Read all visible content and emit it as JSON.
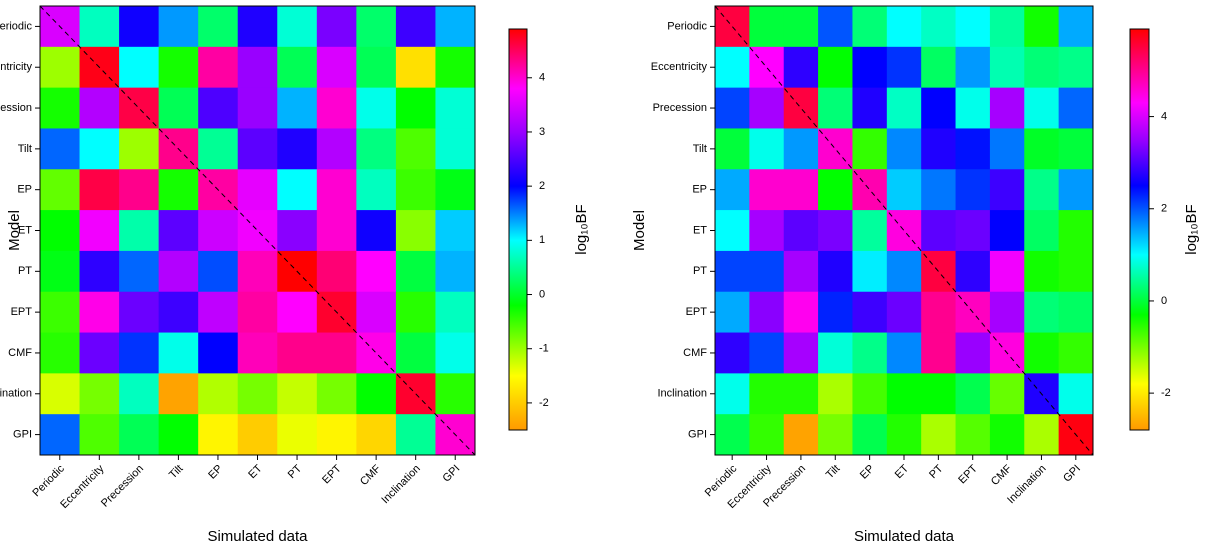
{
  "chart_data": [
    {
      "type": "heatmap",
      "x_categories": [
        "Periodic",
        "Eccentricity",
        "Precession",
        "Tilt",
        "EP",
        "ET",
        "PT",
        "EPT",
        "CMF",
        "Inclination",
        "GPI"
      ],
      "y_categories": [
        "Periodic",
        "Eccentricity",
        "Precession",
        "Tilt",
        "EP",
        "ET",
        "PT",
        "EPT",
        "CMF",
        "Inclination",
        "GPI"
      ],
      "xlabel": "Simulated data",
      "ylabel": "Model",
      "colorbar_label": "log₁₀BF",
      "zlim": [
        -2.5,
        4.9
      ],
      "zticks": [
        -2,
        -1,
        0,
        1,
        2,
        3,
        4
      ],
      "colorscale": [
        {
          "value": -2.5,
          "color": "#ff9900"
        },
        {
          "value": -1.5,
          "color": "#ffff00"
        },
        {
          "value": -0.2,
          "color": "#00ff00"
        },
        {
          "value": 1,
          "color": "#00ffff"
        },
        {
          "value": 2,
          "color": "#0000ff"
        },
        {
          "value": 3,
          "color": "#9900ff"
        },
        {
          "value": 3.8,
          "color": "#ff00ff"
        },
        {
          "value": 4.9,
          "color": "#ff0000"
        }
      ],
      "values": [
        [
          3.5,
          0.7,
          2.1,
          1.4,
          0.3,
          2.2,
          0.8,
          2.8,
          0.3,
          2.4,
          1.3
        ],
        [
          -1.0,
          4.8,
          1.0,
          -0.3,
          4.2,
          3.0,
          0.2,
          3.5,
          0.2,
          -1.8,
          -0.3
        ],
        [
          -0.3,
          3.2,
          4.6,
          0.2,
          2.5,
          3.0,
          1.3,
          4.0,
          0.9,
          -0.2,
          0.8
        ],
        [
          1.6,
          1.0,
          -1.0,
          4.3,
          0.5,
          2.6,
          2.2,
          3.2,
          0.4,
          -0.6,
          0.8
        ],
        [
          -0.7,
          4.6,
          4.3,
          -0.3,
          4.2,
          3.6,
          1.0,
          4.0,
          0.7,
          -0.5,
          -0.1
        ],
        [
          -0.2,
          3.7,
          0.6,
          2.6,
          3.4,
          3.7,
          2.9,
          4.0,
          2.1,
          -0.9,
          1.2
        ],
        [
          -0.1,
          2.3,
          1.6,
          3.2,
          1.7,
          4.1,
          4.9,
          4.4,
          3.8,
          0.1,
          1.3
        ],
        [
          -0.5,
          3.9,
          2.7,
          2.4,
          3.3,
          4.2,
          3.8,
          4.7,
          3.5,
          -0.4,
          0.7
        ],
        [
          -0.4,
          2.7,
          1.8,
          0.9,
          2.0,
          4.1,
          4.3,
          4.3,
          3.9,
          0.1,
          0.9
        ],
        [
          -1.3,
          -0.8,
          0.7,
          -2.4,
          -1.1,
          -0.8,
          -1.2,
          -0.8,
          -0.2,
          4.7,
          -0.4
        ],
        [
          1.6,
          -0.6,
          0.2,
          -0.2,
          -1.6,
          -2.0,
          -1.4,
          -1.6,
          -1.9,
          0.5,
          4.0
        ]
      ]
    },
    {
      "type": "heatmap",
      "x_categories": [
        "Periodic",
        "Eccentricity",
        "Precession",
        "Tilt",
        "EP",
        "ET",
        "PT",
        "EPT",
        "CMF",
        "Inclination",
        "GPI"
      ],
      "y_categories": [
        "Periodic",
        "Eccentricity",
        "Precession",
        "Tilt",
        "EP",
        "ET",
        "PT",
        "EPT",
        "CMF",
        "Inclination",
        "GPI"
      ],
      "xlabel": "Simulated data",
      "ylabel": "Model",
      "colorbar_label": "log₁₀BF",
      "zlim": [
        -2.8,
        5.9
      ],
      "zticks": [
        -2,
        0,
        2,
        4
      ],
      "colorscale": [
        {
          "value": -2.8,
          "color": "#ff9900"
        },
        {
          "value": -1.8,
          "color": "#ffff00"
        },
        {
          "value": -0.3,
          "color": "#00ff00"
        },
        {
          "value": 1,
          "color": "#00ffff"
        },
        {
          "value": 2.5,
          "color": "#0000ff"
        },
        {
          "value": 3.5,
          "color": "#9900ff"
        },
        {
          "value": 4.3,
          "color": "#ff00ff"
        },
        {
          "value": 5.9,
          "color": "#ff0000"
        }
      ],
      "values": [
        [
          5.5,
          0.0,
          0.0,
          2.0,
          0.3,
          1.0,
          0.7,
          1.0,
          0.5,
          -0.4,
          1.5
        ],
        [
          1.0,
          4.3,
          2.8,
          -0.3,
          2.5,
          2.2,
          0.2,
          1.6,
          0.6,
          0.3,
          0.4
        ],
        [
          2.1,
          3.6,
          5.5,
          0.3,
          2.7,
          0.7,
          2.5,
          0.9,
          3.6,
          0.9,
          1.9
        ],
        [
          0.0,
          0.9,
          1.6,
          4.6,
          -0.6,
          1.7,
          2.7,
          2.4,
          1.8,
          -0.1,
          0.0
        ],
        [
          1.5,
          4.6,
          4.6,
          -0.3,
          4.8,
          1.3,
          1.8,
          2.2,
          2.9,
          0.4,
          1.6
        ],
        [
          1.0,
          3.6,
          3.1,
          3.3,
          0.5,
          4.5,
          3.1,
          3.2,
          2.5,
          0.2,
          -0.5
        ],
        [
          2.1,
          2.1,
          3.6,
          2.7,
          1.1,
          1.7,
          5.5,
          2.8,
          4.2,
          -0.4,
          -0.5
        ],
        [
          1.5,
          3.4,
          4.4,
          2.3,
          2.9,
          3.2,
          5.0,
          4.7,
          3.6,
          0.3,
          0.2
        ],
        [
          2.8,
          2.1,
          3.6,
          0.8,
          0.4,
          1.7,
          5.0,
          3.5,
          4.5,
          -0.4,
          -0.6
        ],
        [
          0.9,
          -0.5,
          -0.5,
          -1.3,
          -0.7,
          -0.3,
          -0.3,
          0.1,
          -0.9,
          2.7,
          0.9
        ],
        [
          0.1,
          -0.6,
          -2.7,
          -1.0,
          0.1,
          -0.5,
          -1.3,
          -0.8,
          -0.4,
          -1.3,
          5.8
        ]
      ]
    }
  ]
}
